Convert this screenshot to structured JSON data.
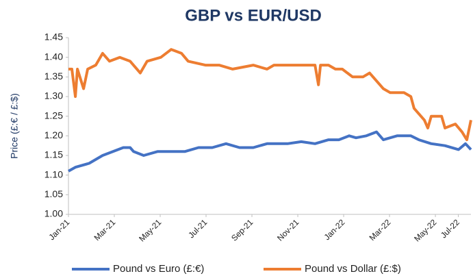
{
  "chart_data": {
    "type": "line",
    "title": "GBP vs EUR/USD",
    "y_label": "Price (£:€ / £:$)",
    "xlim": [
      0,
      17.55
    ],
    "ylim": [
      1.0,
      1.45
    ],
    "xticks": [
      {
        "value": 0,
        "label": "Jan-21"
      },
      {
        "value": 2,
        "label": "Mar-21"
      },
      {
        "value": 4,
        "label": "May-21"
      },
      {
        "value": 6,
        "label": "Jul-21"
      },
      {
        "value": 8,
        "label": "Sep-21"
      },
      {
        "value": 10,
        "label": "Nov-21"
      },
      {
        "value": 12,
        "label": "Jan-22"
      },
      {
        "value": 14,
        "label": "Mar-22"
      },
      {
        "value": 16,
        "label": "May-22"
      },
      {
        "value": 17,
        "label": "Jul-22"
      }
    ],
    "yticks": [
      {
        "value": 1.0,
        "label": "1.00"
      },
      {
        "value": 1.05,
        "label": "1.05"
      },
      {
        "value": 1.1,
        "label": "1.10"
      },
      {
        "value": 1.15,
        "label": "1.15"
      },
      {
        "value": 1.2,
        "label": "1.20"
      },
      {
        "value": 1.25,
        "label": "1.25"
      },
      {
        "value": 1.3,
        "label": "1.30"
      },
      {
        "value": 1.35,
        "label": "1.35"
      },
      {
        "value": 1.4,
        "label": "1.40"
      },
      {
        "value": 1.45,
        "label": "1.45"
      }
    ],
    "grid": false,
    "legend": "bottom",
    "series": [
      {
        "name": "Pound vs Euro (£:€)",
        "color": "#4472c4",
        "x": [
          0,
          0.3,
          0.9,
          1.49,
          1.94,
          2.39,
          2.69,
          2.84,
          3.28,
          3.88,
          4.48,
          5.07,
          5.67,
          6.27,
          6.87,
          7.46,
          8.06,
          8.66,
          9.55,
          10.15,
          10.75,
          11.34,
          11.79,
          12.24,
          12.54,
          12.99,
          13.43,
          13.73,
          14.33,
          14.93,
          15.28,
          15.82,
          16.42,
          17.01,
          17.31,
          17.55
        ],
        "values": [
          1.11,
          1.12,
          1.13,
          1.15,
          1.16,
          1.17,
          1.17,
          1.16,
          1.15,
          1.16,
          1.16,
          1.16,
          1.17,
          1.17,
          1.18,
          1.17,
          1.17,
          1.18,
          1.18,
          1.185,
          1.18,
          1.19,
          1.19,
          1.2,
          1.195,
          1.2,
          1.21,
          1.19,
          1.2,
          1.2,
          1.19,
          1.18,
          1.175,
          1.165,
          1.18,
          1.165
        ]
      },
      {
        "name": "Pound vs Dollar (£:$)",
        "color": "#ed7d31",
        "x": [
          0,
          0.15,
          0.3,
          0.39,
          0.66,
          0.84,
          1.19,
          1.49,
          1.79,
          2.24,
          2.69,
          3.13,
          3.43,
          4.03,
          4.48,
          4.93,
          5.22,
          5.97,
          6.57,
          7.16,
          8.06,
          8.66,
          8.96,
          10.15,
          10.75,
          10.9,
          10.99,
          11.34,
          11.64,
          11.94,
          12.39,
          12.84,
          13.13,
          13.73,
          14.03,
          14.63,
          14.93,
          15.07,
          15.52,
          15.67,
          15.82,
          16.27,
          16.42,
          16.87,
          17.16,
          17.37,
          17.55
        ],
        "values": [
          1.37,
          1.37,
          1.3,
          1.37,
          1.32,
          1.37,
          1.38,
          1.41,
          1.39,
          1.4,
          1.39,
          1.36,
          1.39,
          1.4,
          1.42,
          1.41,
          1.39,
          1.38,
          1.38,
          1.37,
          1.38,
          1.37,
          1.38,
          1.38,
          1.38,
          1.33,
          1.38,
          1.38,
          1.37,
          1.37,
          1.35,
          1.35,
          1.36,
          1.32,
          1.31,
          1.31,
          1.3,
          1.27,
          1.24,
          1.22,
          1.25,
          1.25,
          1.22,
          1.23,
          1.21,
          1.19,
          1.24
        ]
      }
    ]
  }
}
